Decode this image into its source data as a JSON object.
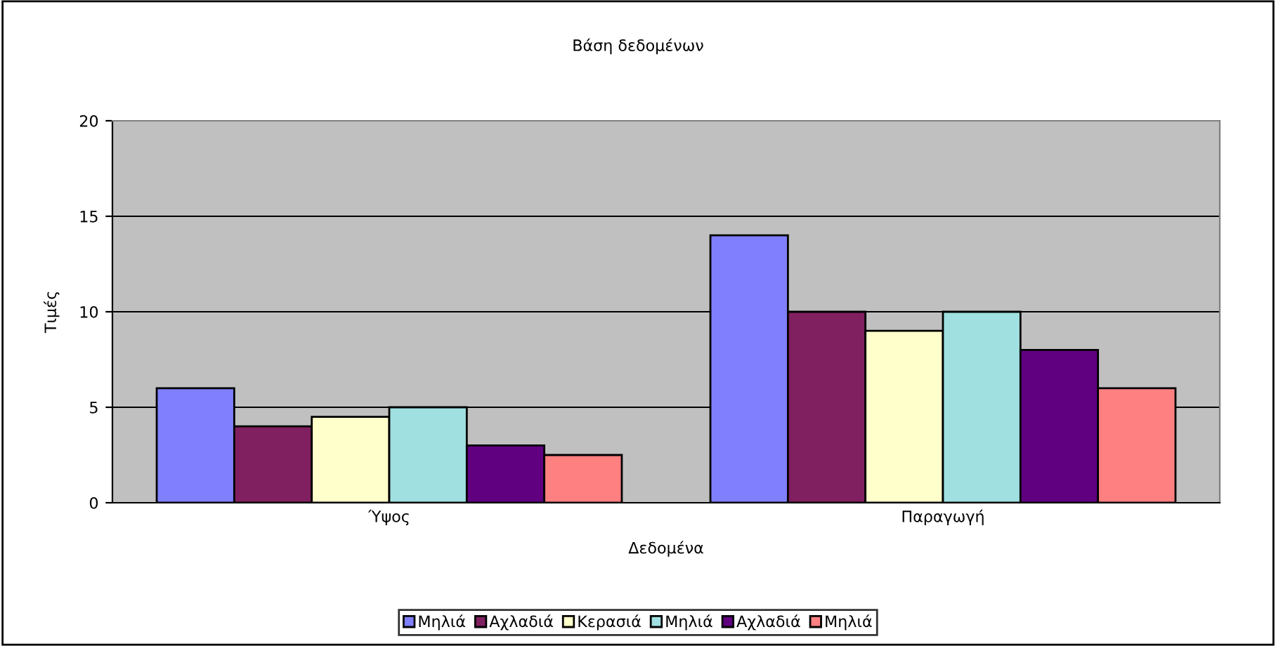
{
  "chart_data": {
    "type": "bar",
    "title": "Βάση δεδομένων",
    "xlabel": "Δεδομένα",
    "ylabel": "Τιμές",
    "categories": [
      "Ύψος",
      "Παραγωγή"
    ],
    "series": [
      {
        "name": "Μηλιά",
        "color": "#8080ff",
        "values": [
          6,
          14
        ]
      },
      {
        "name": "Αχλαδιά",
        "color": "#802060",
        "values": [
          4,
          10
        ]
      },
      {
        "name": "Κερασιά",
        "color": "#ffffcc",
        "values": [
          4.5,
          9
        ]
      },
      {
        "name": "Μηλιά",
        "color": "#a0e0e0",
        "values": [
          5,
          10
        ]
      },
      {
        "name": "Αχλαδιά",
        "color": "#600080",
        "values": [
          3,
          8
        ]
      },
      {
        "name": "Μηλιά",
        "color": "#ff8080",
        "values": [
          2.5,
          6
        ]
      }
    ],
    "ylim": [
      0,
      20
    ],
    "yticks": [
      0,
      5,
      10,
      15,
      20
    ],
    "grid": "y",
    "legend": "bottom"
  }
}
